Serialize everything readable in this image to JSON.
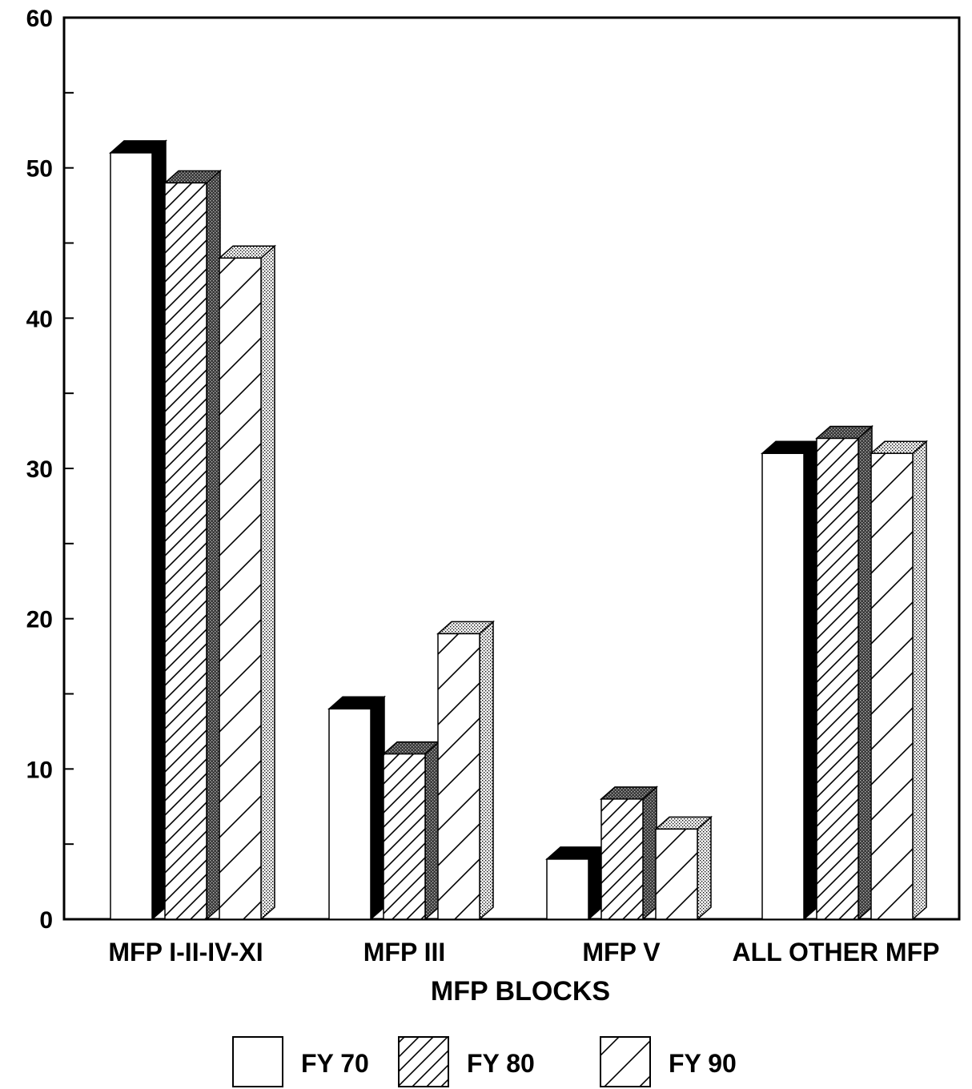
{
  "chart_data": {
    "type": "bar",
    "title": "",
    "xlabel": "MFP BLOCKS",
    "ylabel": "",
    "ylim": [
      0,
      60
    ],
    "yticks": [
      0,
      10,
      20,
      30,
      40,
      50,
      60
    ],
    "categories": [
      "MFP I-II-IV-XI",
      "MFP III",
      "MFP V",
      "ALL OTHER MFP"
    ],
    "series": [
      {
        "name": "FY 70",
        "values": [
          51,
          14,
          4,
          31
        ]
      },
      {
        "name": "FY 80",
        "values": [
          49,
          11,
          8,
          32
        ]
      },
      {
        "name": "FY 90",
        "values": [
          44,
          19,
          6,
          31
        ]
      }
    ],
    "legend_position": "bottom",
    "grid": false,
    "style": "3d-bar"
  }
}
